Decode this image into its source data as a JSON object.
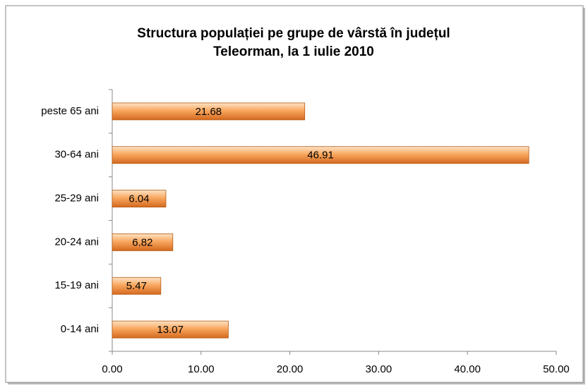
{
  "chart_data": {
    "type": "bar",
    "orientation": "horizontal",
    "title": [
      "Structura populației pe grupe de vârstă în județul",
      "Teleorman, la 1 iulie 2010"
    ],
    "categories": [
      "0-14 ani",
      "15-19 ani",
      "20-24 ani",
      "25-29 ani",
      "30-64 ani",
      "peste 65 ani"
    ],
    "values": [
      13.07,
      5.47,
      6.82,
      6.04,
      46.91,
      21.68
    ],
    "color": "#f79646",
    "xlim": [
      0,
      50
    ],
    "xticks": [
      {
        "value": 0,
        "label": "0.00"
      },
      {
        "value": 10,
        "label": "10.00"
      },
      {
        "value": 20,
        "label": "20.00"
      },
      {
        "value": 30,
        "label": "30.00"
      },
      {
        "value": 40,
        "label": "40.00"
      },
      {
        "value": 50,
        "label": "50.00"
      }
    ],
    "grid": false
  }
}
